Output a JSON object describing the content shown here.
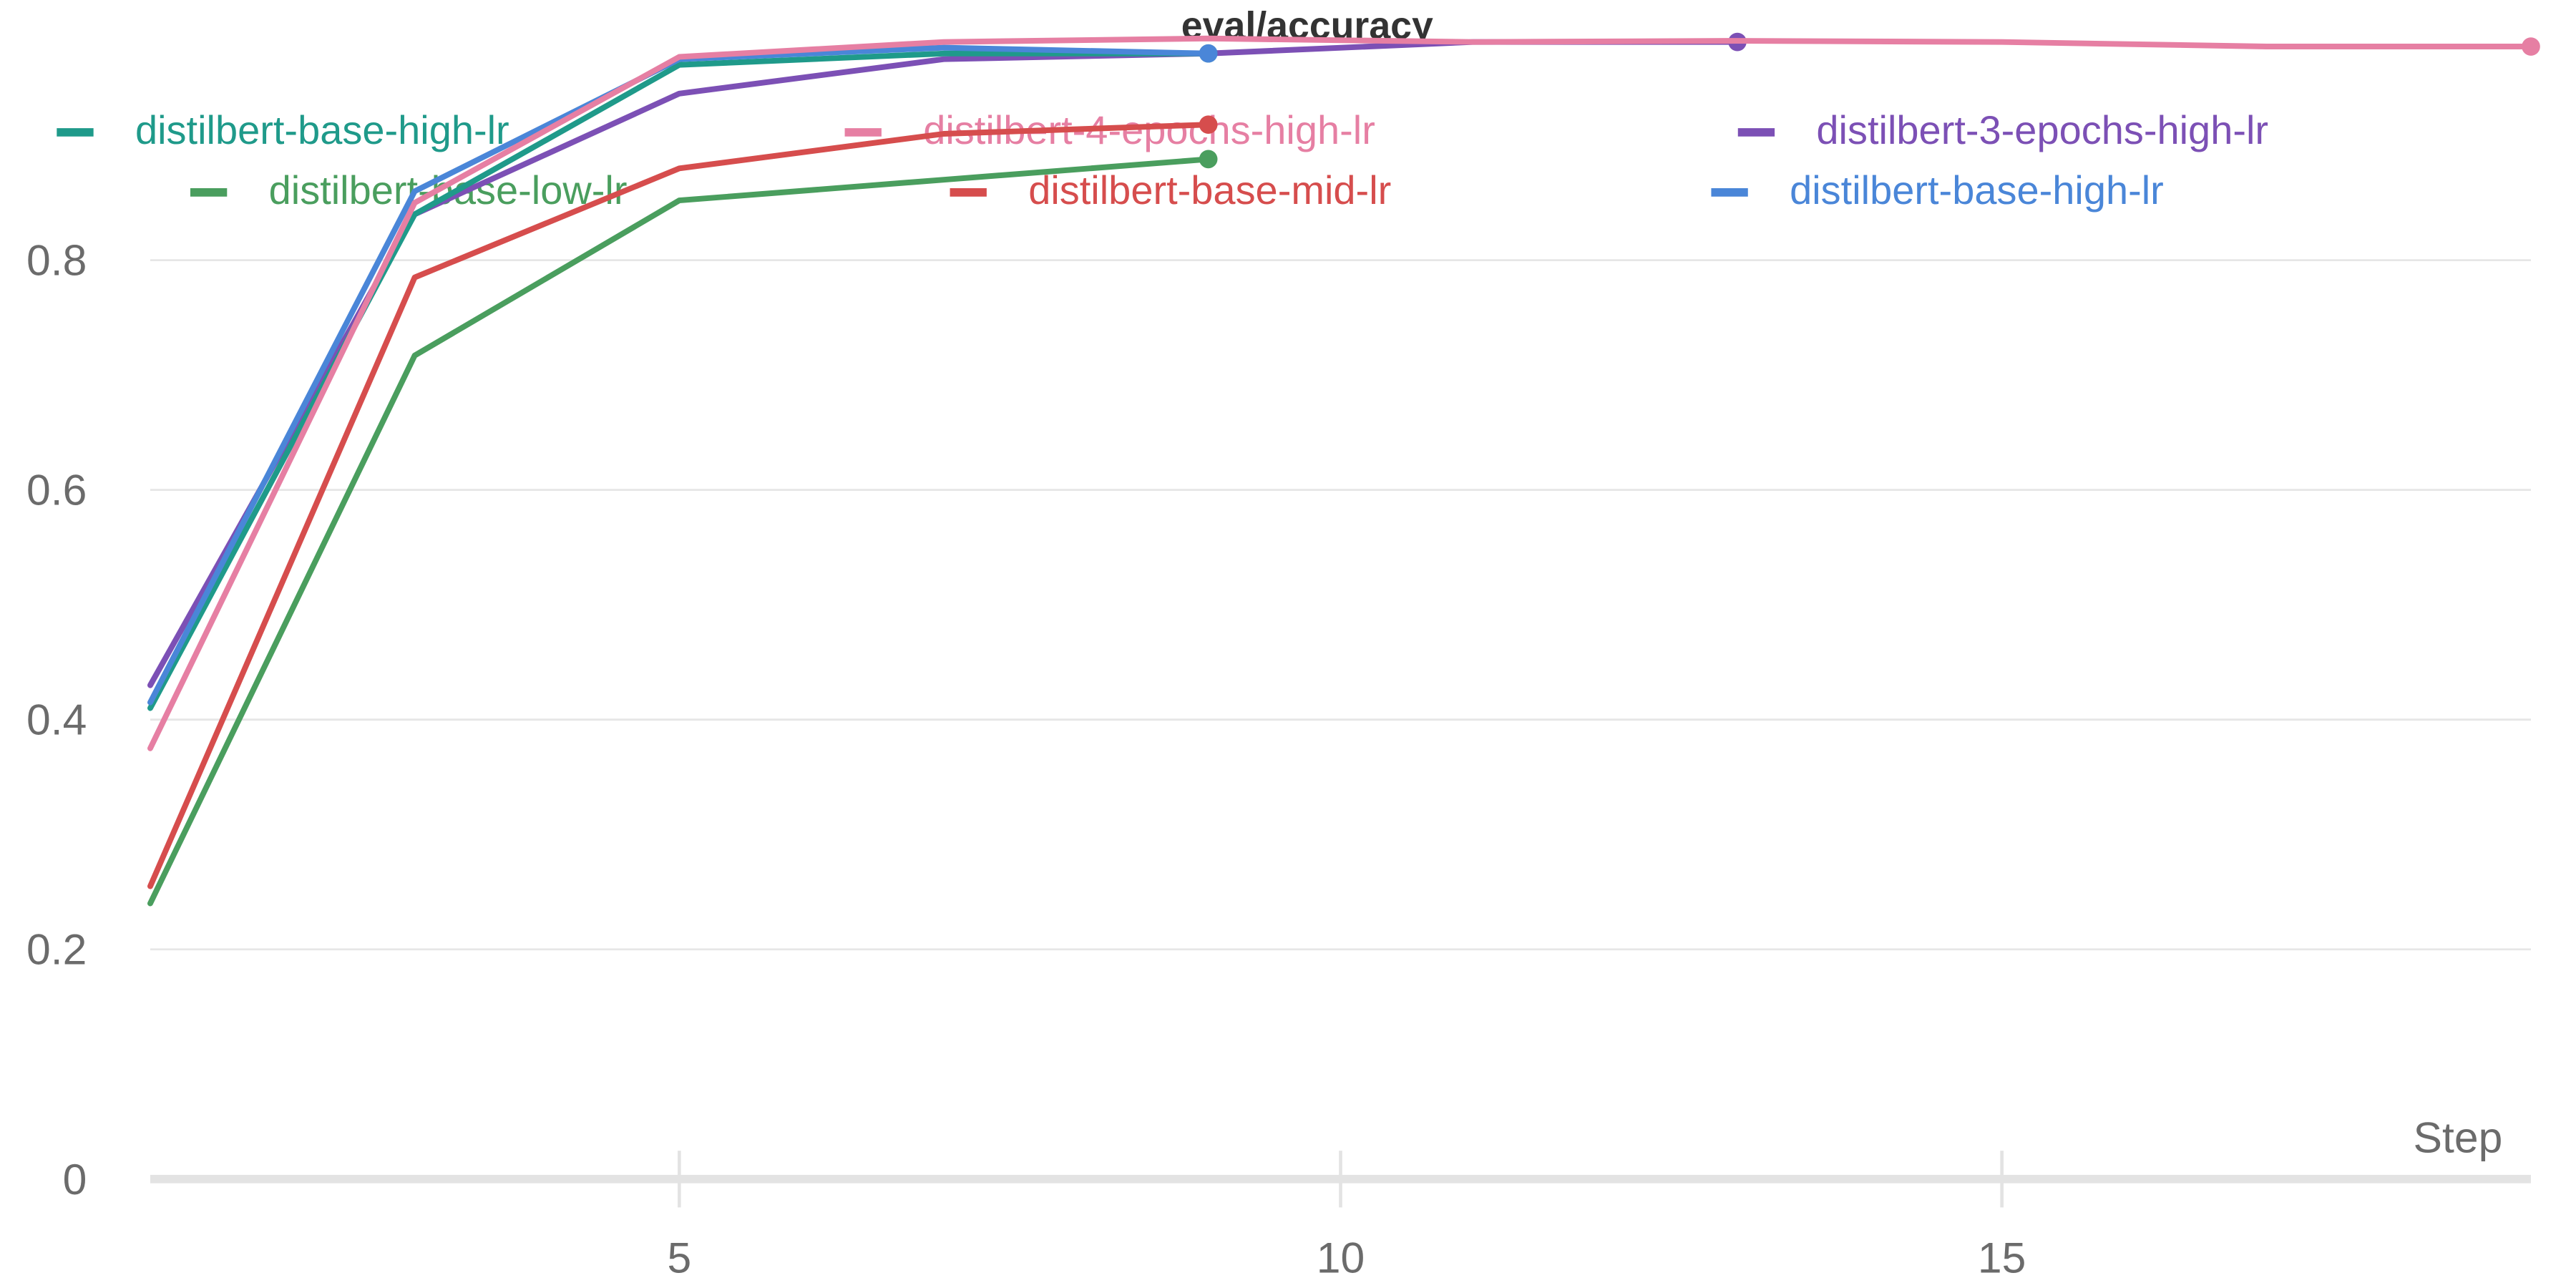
{
  "chart_data": {
    "type": "line",
    "title": "eval/accuracy",
    "xlabel": "Step",
    "ylabel": "",
    "xlim": [
      1,
      19
    ],
    "ylim": [
      0,
      1.0
    ],
    "x_ticks": [
      "5",
      "10",
      "15"
    ],
    "y_ticks": [
      "0",
      "0.2",
      "0.4",
      "0.6",
      "0.8"
    ],
    "grid": "horizontal",
    "legend_position": "top",
    "series": [
      {
        "name": "distilbert-base-high-lr",
        "color": "#1f9a8a",
        "points": [
          [
            1,
            0.41
          ],
          [
            3,
            0.84
          ],
          [
            5,
            0.97
          ],
          [
            7,
            0.98
          ],
          [
            9,
            0.98
          ]
        ]
      },
      {
        "name": "distilbert-4-epochs-high-lr",
        "color": "#e67fa3",
        "points": [
          [
            1,
            0.375
          ],
          [
            3,
            0.85
          ],
          [
            5,
            0.977
          ],
          [
            7,
            0.99
          ],
          [
            9,
            0.993
          ],
          [
            11,
            0.99
          ],
          [
            13,
            0.991
          ],
          [
            15,
            0.99
          ],
          [
            17,
            0.986
          ],
          [
            19,
            0.986
          ]
        ]
      },
      {
        "name": "distilbert-3-epochs-high-lr",
        "color": "#7c50b5",
        "points": [
          [
            1,
            0.43
          ],
          [
            3,
            0.84
          ],
          [
            5,
            0.945
          ],
          [
            7,
            0.975
          ],
          [
            9,
            0.98
          ],
          [
            11,
            0.99
          ],
          [
            13,
            0.99
          ]
        ]
      },
      {
        "name": "distilbert-base-low-lr",
        "color": "#4a9e5e",
        "points": [
          [
            1,
            0.24
          ],
          [
            3,
            0.717
          ],
          [
            5,
            0.852
          ],
          [
            7,
            0.87
          ],
          [
            9,
            0.888
          ]
        ]
      },
      {
        "name": "distilbert-base-mid-lr",
        "color": "#d64d4d",
        "points": [
          [
            1,
            0.255
          ],
          [
            3,
            0.785
          ],
          [
            5,
            0.88
          ],
          [
            7,
            0.91
          ],
          [
            9,
            0.918
          ]
        ]
      },
      {
        "name": "distilbert-base-high-lr",
        "color": "#4a86d8",
        "points": [
          [
            1,
            0.415
          ],
          [
            3,
            0.86
          ],
          [
            5,
            0.975
          ],
          [
            7,
            0.985
          ],
          [
            9,
            0.98
          ]
        ]
      }
    ]
  }
}
